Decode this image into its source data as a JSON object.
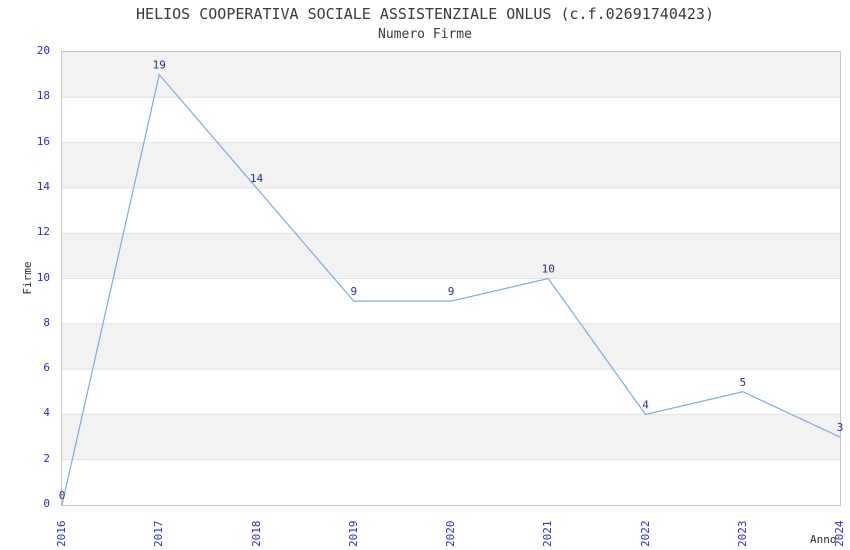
{
  "chart_data": {
    "type": "line",
    "title": "HELIOS COOPERATIVA SOCIALE ASSISTENZIALE ONLUS (c.f.02691740423)",
    "subtitle": "Numero Firme",
    "xlabel": "Anno",
    "ylabel": "Firme",
    "x": [
      2016,
      2017,
      2018,
      2019,
      2020,
      2021,
      2022,
      2023,
      2024
    ],
    "values": [
      0,
      19,
      14,
      9,
      9,
      10,
      4,
      5,
      3
    ],
    "xtick_labels": [
      "2016",
      "2017",
      "2018",
      "2019",
      "2020",
      "2021",
      "2022",
      "2023",
      "2024"
    ],
    "ytick_labels": [
      "0",
      "2",
      "4",
      "6",
      "8",
      "10",
      "12",
      "14",
      "16",
      "18",
      "20"
    ],
    "ylim": [
      0,
      20
    ],
    "ytick_step": 2,
    "grid": "alternating-horizontal-bands",
    "legend": "none",
    "point_labels_visible": true,
    "colors": {
      "line": "#7dabde",
      "axis_tick_text": "#2b2bcc",
      "point_label_text": "#2d2d7e",
      "band_fill": "#f2f2f2",
      "grid_line": "#e2e2e2",
      "plot_border": "#c6c6c6",
      "title_text": "#3a3a3a",
      "axis_label_text": "#303030"
    }
  }
}
